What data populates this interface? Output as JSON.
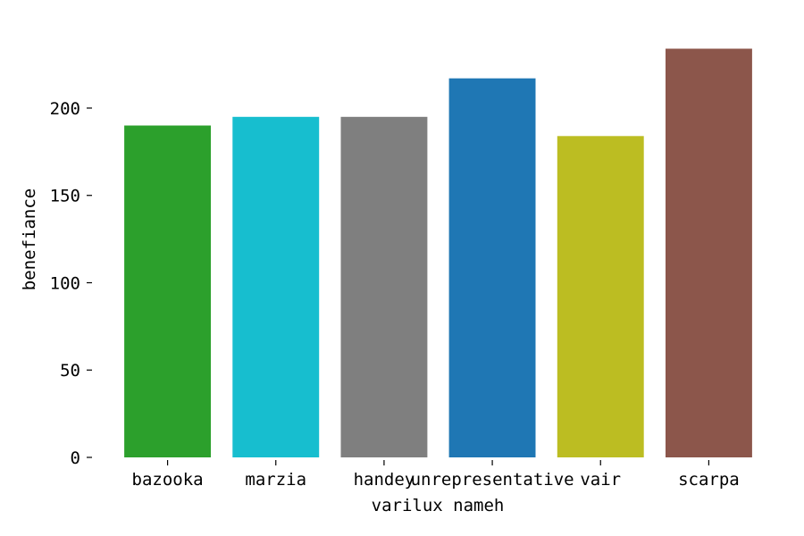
{
  "chart_data": {
    "type": "bar",
    "title": "",
    "xlabel": "varilux nameh",
    "ylabel": "benefiance",
    "categories": [
      "bazooka",
      "marzia",
      "handey",
      "unrepresentative",
      "vair",
      "scarpa"
    ],
    "values": [
      190,
      195,
      195,
      217,
      184,
      234
    ],
    "colors": [
      "#2ca02c",
      "#17becf",
      "#7f7f7f",
      "#1f77b4",
      "#bcbd22",
      "#8c564b"
    ],
    "yticks": [
      0,
      50,
      100,
      150,
      200
    ],
    "ylim": [
      0,
      245
    ],
    "grid": false,
    "legend": "none"
  }
}
